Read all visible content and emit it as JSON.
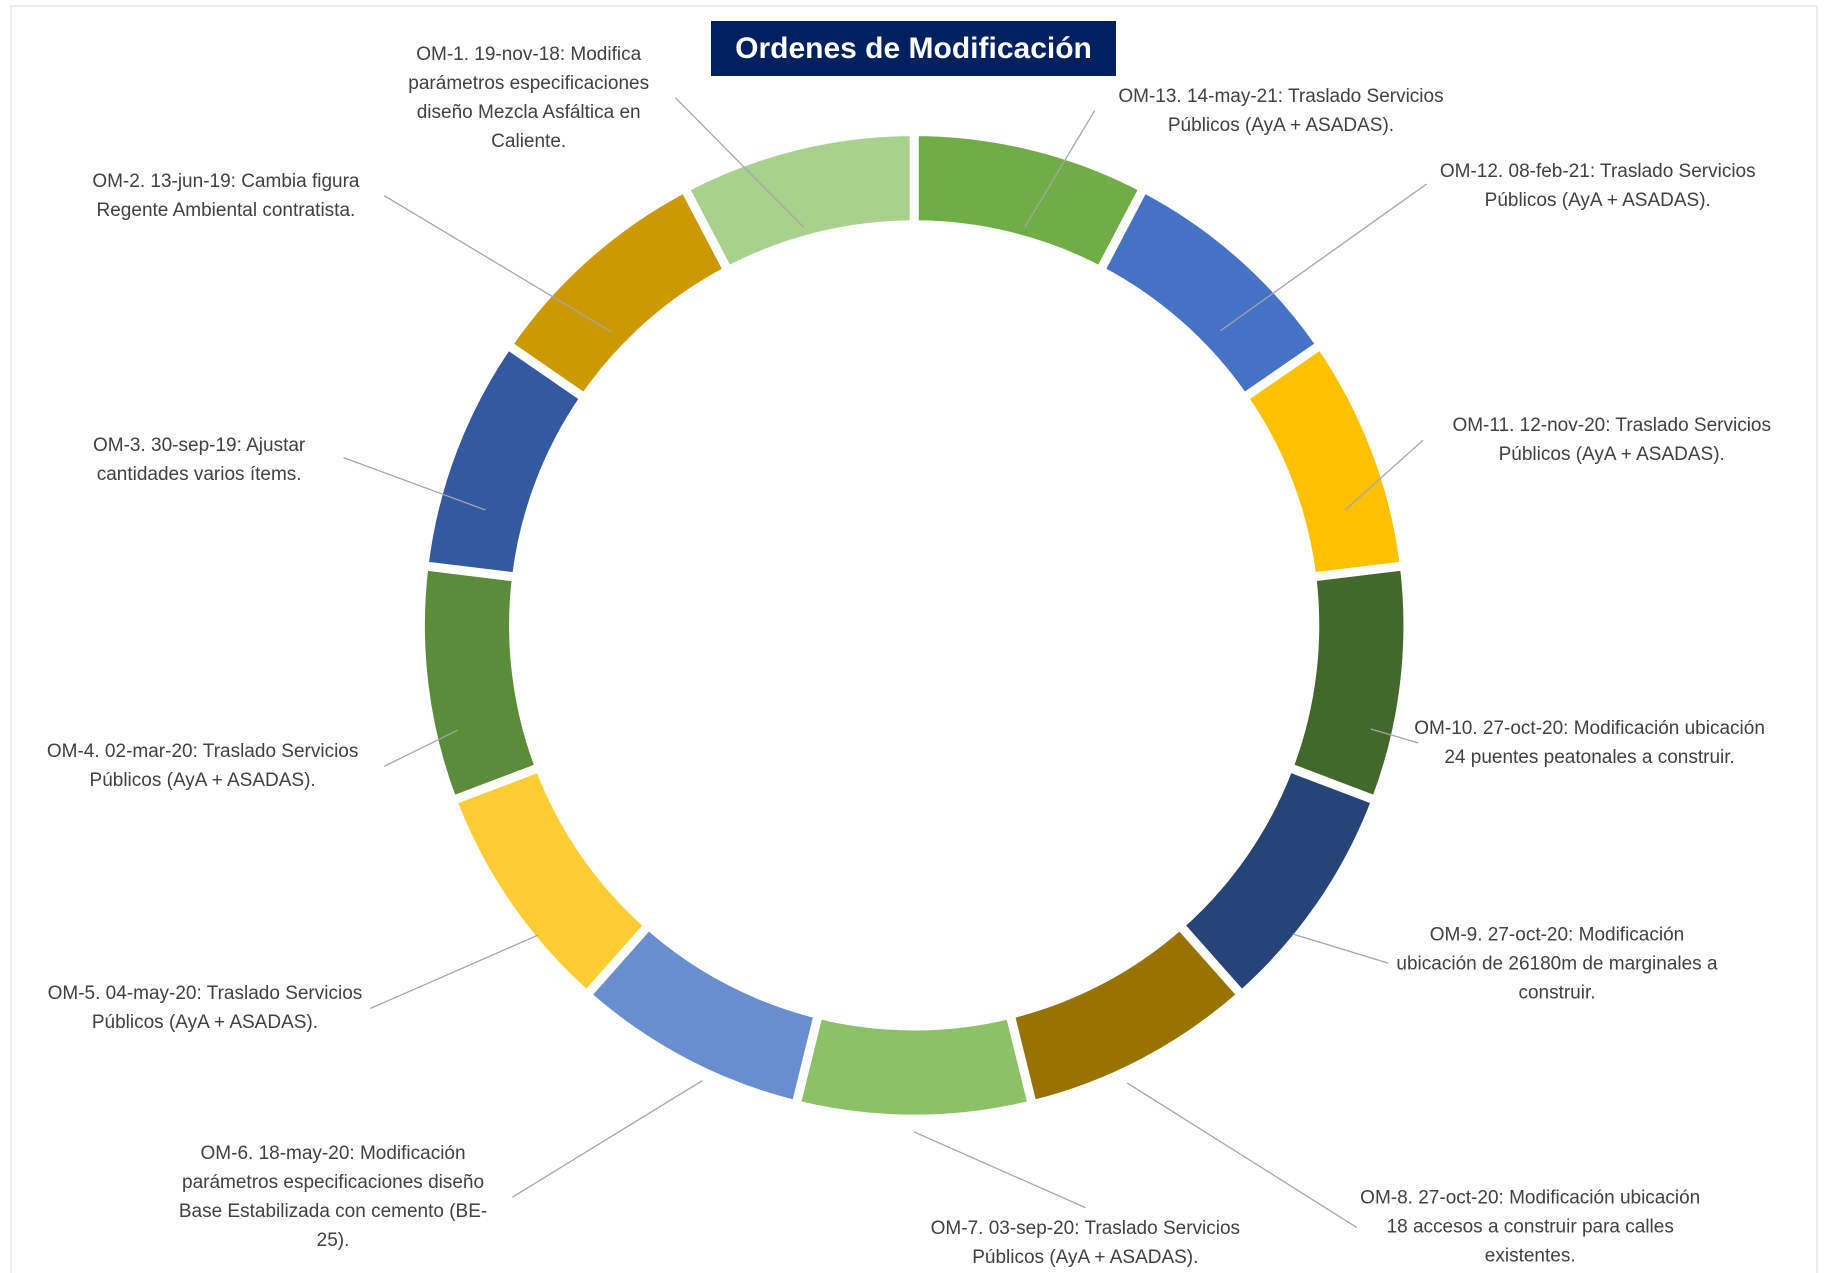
{
  "chart_data": {
    "type": "donut",
    "title": "Ordenes de Modificación",
    "categories": [
      "OM-13. 14-may-21: Traslado Servicios Públicos (AyA + ASADAS).",
      "OM-12. 08-feb-21: Traslado Servicios Públicos (AyA + ASADAS).",
      "OM-11. 12-nov-20: Traslado Servicios Públicos (AyA + ASADAS).",
      "OM-10. 27-oct-20: Modificación ubicación 24 puentes peatonales a construir.",
      "OM-9. 27-oct-20: Modificación ubicación de 26180m de marginales a construir.",
      "OM-8. 27-oct-20: Modificación ubicación 18 accesos a construir para calles existentes.",
      "OM-7. 03-sep-20: Traslado Servicios Públicos (AyA + ASADAS).",
      "OM-6. 18-may-20: Modificación parámetros especificaciones diseño Base Estabilizada con cemento (BE-25).",
      "OM-5. 04-may-20: Traslado Servicios Públicos (AyA + ASADAS).",
      "OM-4. 02-mar-20: Traslado Servicios Públicos (AyA + ASADAS).",
      "OM-3. 30-sep-19: Ajustar cantidades varios ítems.",
      "OM-2. 13-jun-19: Cambia figura Regente Ambiental contratista.",
      "OM-1. 19-nov-18: Modifica parámetros especificaciones diseño Mezcla Asfáltica en Caliente."
    ],
    "values": [
      1,
      1,
      1,
      1,
      1,
      1,
      1,
      1,
      1,
      1,
      1,
      1,
      1
    ],
    "colors": [
      "#70AD47",
      "#4472C4",
      "#FFC000",
      "#43682B",
      "#264478",
      "#997300",
      "#8CC168",
      "#698ED0",
      "#FFCD33",
      "#5B8C3A",
      "#335AA1",
      "#CC9A00",
      "#A9D18E"
    ]
  }
}
